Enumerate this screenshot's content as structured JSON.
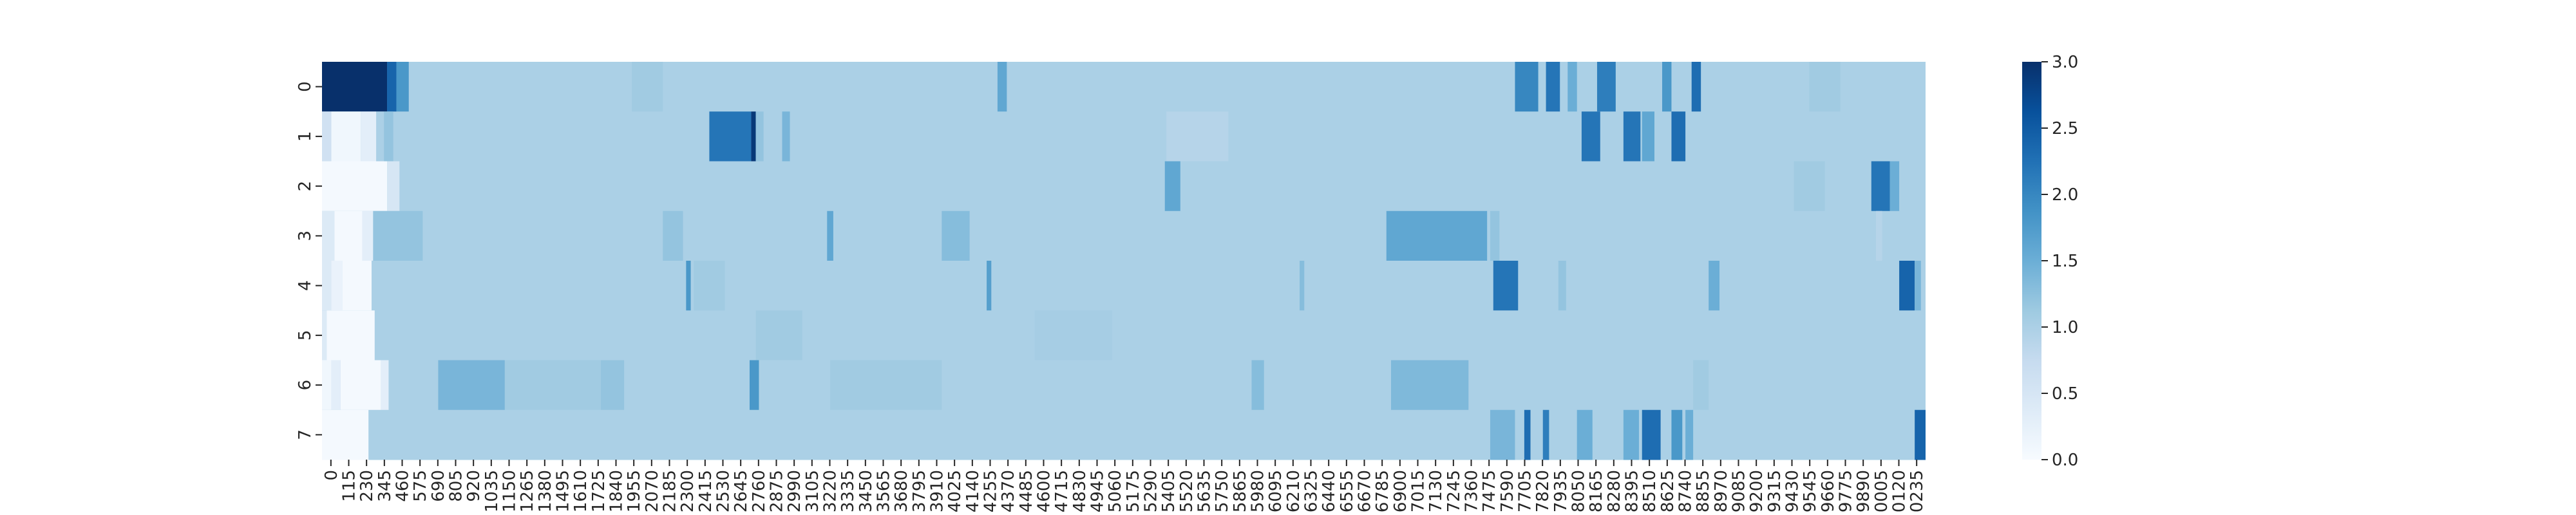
{
  "chart_data": {
    "type": "heatmap",
    "title": "",
    "xlabel": "",
    "ylabel": "",
    "colormap": "Blues",
    "value_range": [
      0,
      3.0
    ],
    "colorbar_ticks": [
      "0.0",
      "0.5",
      "1.0",
      "1.5",
      "2.0",
      "2.5",
      "3.0"
    ],
    "y_categories": [
      "0",
      "1",
      "2",
      "3",
      "4",
      "5",
      "6",
      "7"
    ],
    "x_tick_labels": [
      "0",
      "115",
      "230",
      "345",
      "460",
      "575",
      "690",
      "805",
      "920",
      "1035",
      "1150",
      "1265",
      "1380",
      "1495",
      "1610",
      "1725",
      "1840",
      "1955",
      "2070",
      "2185",
      "2300",
      "2415",
      "2530",
      "2645",
      "2760",
      "2875",
      "2990",
      "3105",
      "3220",
      "3335",
      "3450",
      "3565",
      "3680",
      "3795",
      "3910",
      "4025",
      "4140",
      "4255",
      "4370",
      "4485",
      "4600",
      "4715",
      "4830",
      "4945",
      "5060",
      "5175",
      "5290",
      "5405",
      "5520",
      "5635",
      "5750",
      "5865",
      "5980",
      "6095",
      "6210",
      "6325",
      "6440",
      "6555",
      "6670",
      "6785",
      "6900",
      "7015",
      "7130",
      "7245",
      "7360",
      "7475",
      "7590",
      "7705",
      "7820",
      "7935",
      "8050",
      "8165",
      "8280",
      "8395",
      "8510",
      "8625",
      "8740",
      "8855",
      "8970",
      "9085",
      "9200",
      "9315",
      "9430",
      "9545",
      "9660",
      "9775",
      "9890",
      "0005",
      "0120",
      "0235"
    ],
    "x_range": [
      0,
      10350
    ],
    "background_value": 1.0,
    "rows": [
      {
        "label": "0",
        "base": 1.0,
        "segments": [
          {
            "x0": 0,
            "x1": 420,
            "v": 3.0
          },
          {
            "x0": 420,
            "x1": 480,
            "v": 2.4
          },
          {
            "x0": 480,
            "x1": 560,
            "v": 1.8
          },
          {
            "x0": 2000,
            "x1": 2200,
            "v": 1.1
          },
          {
            "x0": 4360,
            "x1": 4420,
            "v": 1.6
          },
          {
            "x0": 7700,
            "x1": 7850,
            "v": 2.0
          },
          {
            "x0": 7900,
            "x1": 7990,
            "v": 2.2
          },
          {
            "x0": 8040,
            "x1": 8100,
            "v": 1.5
          },
          {
            "x0": 8230,
            "x1": 8350,
            "v": 2.1
          },
          {
            "x0": 8650,
            "x1": 8710,
            "v": 1.8
          },
          {
            "x0": 8840,
            "x1": 8900,
            "v": 2.3
          },
          {
            "x0": 9600,
            "x1": 9800,
            "v": 1.1
          }
        ]
      },
      {
        "label": "1",
        "base": 1.0,
        "segments": [
          {
            "x0": 0,
            "x1": 60,
            "v": 0.6
          },
          {
            "x0": 60,
            "x1": 250,
            "v": 0.1
          },
          {
            "x0": 250,
            "x1": 350,
            "v": 0.3
          },
          {
            "x0": 350,
            "x1": 400,
            "v": 1.0
          },
          {
            "x0": 400,
            "x1": 460,
            "v": 1.2
          },
          {
            "x0": 2500,
            "x1": 2770,
            "v": 2.2
          },
          {
            "x0": 2770,
            "x1": 2800,
            "v": 2.9
          },
          {
            "x0": 2800,
            "x1": 2850,
            "v": 1.2
          },
          {
            "x0": 2970,
            "x1": 3020,
            "v": 1.4
          },
          {
            "x0": 5450,
            "x1": 5850,
            "v": 0.9
          },
          {
            "x0": 8130,
            "x1": 8250,
            "v": 2.2
          },
          {
            "x0": 8400,
            "x1": 8510,
            "v": 2.2
          },
          {
            "x0": 8520,
            "x1": 8600,
            "v": 1.6
          },
          {
            "x0": 8710,
            "x1": 8800,
            "v": 2.3
          }
        ]
      },
      {
        "label": "2",
        "base": 1.0,
        "segments": [
          {
            "x0": 0,
            "x1": 420,
            "v": 0.05
          },
          {
            "x0": 420,
            "x1": 500,
            "v": 0.5
          },
          {
            "x0": 5440,
            "x1": 5540,
            "v": 1.6
          },
          {
            "x0": 9500,
            "x1": 9700,
            "v": 1.1
          },
          {
            "x0": 10000,
            "x1": 10120,
            "v": 2.2
          },
          {
            "x0": 10120,
            "x1": 10180,
            "v": 1.5
          }
        ]
      },
      {
        "label": "3",
        "base": 1.0,
        "segments": [
          {
            "x0": 0,
            "x1": 80,
            "v": 0.4
          },
          {
            "x0": 80,
            "x1": 260,
            "v": 0.05
          },
          {
            "x0": 260,
            "x1": 330,
            "v": 0.3
          },
          {
            "x0": 330,
            "x1": 650,
            "v": 1.2
          },
          {
            "x0": 2200,
            "x1": 2330,
            "v": 1.2
          },
          {
            "x0": 3260,
            "x1": 3300,
            "v": 1.6
          },
          {
            "x0": 4000,
            "x1": 4180,
            "v": 1.3
          },
          {
            "x0": 6870,
            "x1": 7520,
            "v": 1.6
          },
          {
            "x0": 7540,
            "x1": 7600,
            "v": 1.2
          },
          {
            "x0": 10030,
            "x1": 10070,
            "v": 0.9
          }
        ]
      },
      {
        "label": "4",
        "base": 1.0,
        "segments": [
          {
            "x0": 0,
            "x1": 60,
            "v": 0.4
          },
          {
            "x0": 60,
            "x1": 130,
            "v": 0.2
          },
          {
            "x0": 130,
            "x1": 320,
            "v": 0.05
          },
          {
            "x0": 2350,
            "x1": 2380,
            "v": 1.8
          },
          {
            "x0": 2400,
            "x1": 2600,
            "v": 1.1
          },
          {
            "x0": 4290,
            "x1": 4320,
            "v": 1.7
          },
          {
            "x0": 6310,
            "x1": 6340,
            "v": 1.3
          },
          {
            "x0": 7560,
            "x1": 7720,
            "v": 2.2
          },
          {
            "x0": 7980,
            "x1": 8030,
            "v": 1.2
          },
          {
            "x0": 8950,
            "x1": 9020,
            "v": 1.5
          },
          {
            "x0": 10180,
            "x1": 10280,
            "v": 2.4
          },
          {
            "x0": 10280,
            "x1": 10320,
            "v": 1.4
          }
        ]
      },
      {
        "label": "5",
        "base": 1.0,
        "segments": [
          {
            "x0": 0,
            "x1": 30,
            "v": 0.4
          },
          {
            "x0": 30,
            "x1": 340,
            "v": 0.05
          },
          {
            "x0": 2800,
            "x1": 3100,
            "v": 1.1
          },
          {
            "x0": 4600,
            "x1": 5100,
            "v": 1.05
          }
        ]
      },
      {
        "label": "6",
        "base": 1.0,
        "segments": [
          {
            "x0": 0,
            "x1": 60,
            "v": 0.1
          },
          {
            "x0": 60,
            "x1": 120,
            "v": 0.3
          },
          {
            "x0": 120,
            "x1": 380,
            "v": 0.05
          },
          {
            "x0": 380,
            "x1": 430,
            "v": 0.3
          },
          {
            "x0": 750,
            "x1": 1180,
            "v": 1.4
          },
          {
            "x0": 1180,
            "x1": 1800,
            "v": 1.1
          },
          {
            "x0": 1800,
            "x1": 1950,
            "v": 1.2
          },
          {
            "x0": 2760,
            "x1": 2820,
            "v": 1.8
          },
          {
            "x0": 3280,
            "x1": 4000,
            "v": 1.1
          },
          {
            "x0": 6000,
            "x1": 6080,
            "v": 1.3
          },
          {
            "x0": 6900,
            "x1": 7400,
            "v": 1.35
          },
          {
            "x0": 8850,
            "x1": 8950,
            "v": 1.1
          }
        ]
      },
      {
        "label": "7",
        "base": 1.0,
        "segments": [
          {
            "x0": 0,
            "x1": 300,
            "v": 0.05
          },
          {
            "x0": 7540,
            "x1": 7700,
            "v": 1.4
          },
          {
            "x0": 7760,
            "x1": 7800,
            "v": 2.3
          },
          {
            "x0": 7880,
            "x1": 7920,
            "v": 2.1
          },
          {
            "x0": 8100,
            "x1": 8200,
            "v": 1.5
          },
          {
            "x0": 8400,
            "x1": 8500,
            "v": 1.5
          },
          {
            "x0": 8520,
            "x1": 8640,
            "v": 2.3
          },
          {
            "x0": 8710,
            "x1": 8780,
            "v": 1.8
          },
          {
            "x0": 8800,
            "x1": 8850,
            "v": 1.5
          },
          {
            "x0": 10280,
            "x1": 10350,
            "v": 2.4
          }
        ]
      }
    ]
  }
}
